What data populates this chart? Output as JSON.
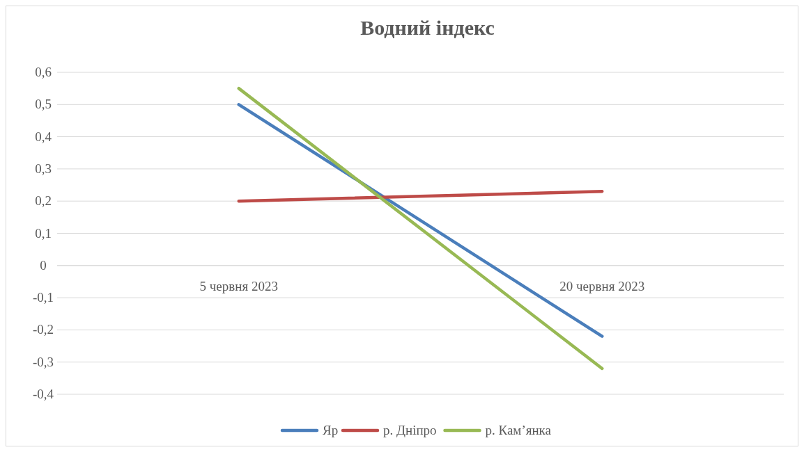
{
  "chart_data": {
    "type": "line",
    "title": "Водний індекс",
    "categories": [
      "5 червня 2023",
      "20 червня 2023"
    ],
    "series": [
      {
        "name": "Яр",
        "color": "#4a7ebb",
        "values": [
          0.5,
          -0.22
        ]
      },
      {
        "name": "р. Дніпро",
        "color": "#be4b48",
        "values": [
          0.2,
          0.23
        ]
      },
      {
        "name": "р. Кам’янка",
        "color": "#98b954",
        "values": [
          0.55,
          -0.32
        ]
      }
    ],
    "ylim": [
      -0.4,
      0.6
    ],
    "yticks": [
      {
        "value": -0.4,
        "label": "-0,4"
      },
      {
        "value": -0.3,
        "label": "-0,3"
      },
      {
        "value": -0.2,
        "label": "-0,2"
      },
      {
        "value": -0.1,
        "label": "-0,1"
      },
      {
        "value": 0,
        "label": "0"
      },
      {
        "value": 0.1,
        "label": "0,1"
      },
      {
        "value": 0.2,
        "label": "0,2"
      },
      {
        "value": 0.3,
        "label": "0,3"
      },
      {
        "value": 0.4,
        "label": "0,4"
      },
      {
        "value": 0.5,
        "label": "0,5"
      },
      {
        "value": 0.6,
        "label": "0,6"
      }
    ],
    "grid": "y",
    "legend": "bottom",
    "marker": "none",
    "line_style": "solid"
  }
}
